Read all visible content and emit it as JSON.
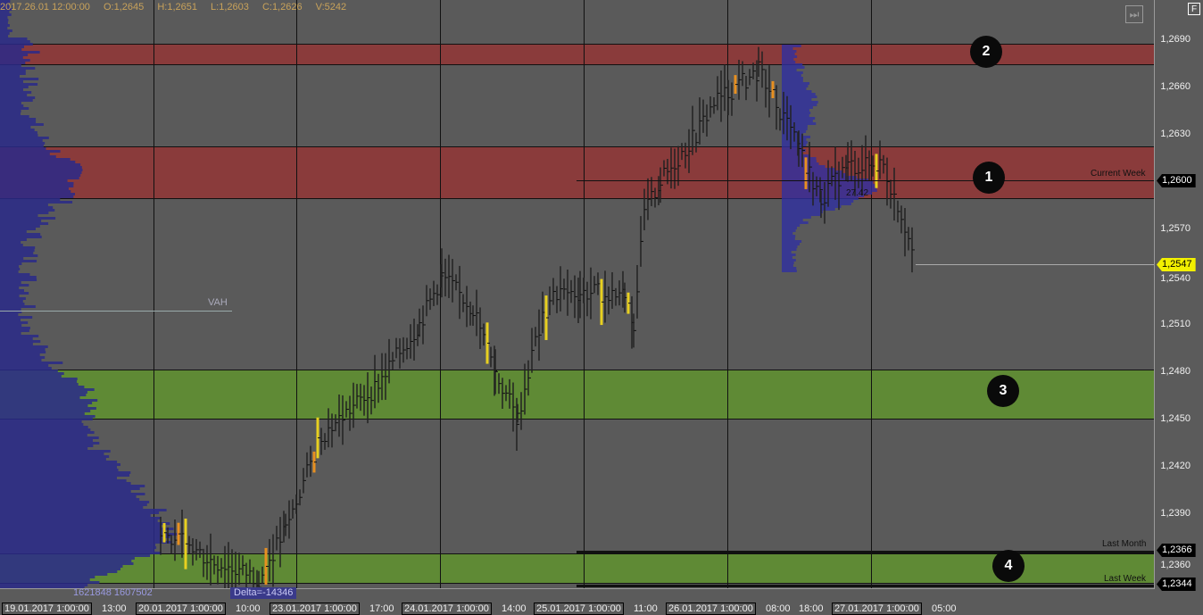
{
  "header": {
    "date": "2017.26.01 12:00:00",
    "open": "O:1,2645",
    "high": "H:1,2651",
    "low": "L:1,2603",
    "close": "C:1,2626",
    "volume": "V:5242"
  },
  "price_axis": [
    "1,2690",
    "1,2660",
    "1,2630",
    "1,2570",
    "1,2540",
    "1,2510",
    "1,2480",
    "1,2450",
    "1,2420",
    "1,2390",
    "1,2360"
  ],
  "price_tags": {
    "current_week": "1,2600",
    "last_price": "1,2547",
    "last_month": "1,2366",
    "last_week": "1,2344"
  },
  "level_labels": {
    "current_week": "Current Week",
    "last_month": "Last Month",
    "last_week": "Last Week",
    "vah": "VAH",
    "poc_value": "27.42"
  },
  "markers": [
    "1",
    "2",
    "3",
    "4"
  ],
  "profile": {
    "volume_text": "1621848 1607502",
    "delta_text": "Delta=-14346"
  },
  "time_axis": {
    "times": [
      "13:00",
      "10:00",
      "17:00",
      "14:00",
      "11:00",
      "08:00",
      "18:00",
      "05:00"
    ],
    "dates": [
      "19.01.2017 1:00:00",
      "20.01.2017 1:00:00",
      "23.01.2017 1:00:00",
      "24.01.2017 1:00:00",
      "25.01.2017 1:00:00",
      "26.01.2017 1:00:00",
      "27.01.2017 1:00:00"
    ]
  },
  "buttons": {
    "scroll_end": "⏭",
    "f_button": "F"
  },
  "colors": {
    "resistance": "#8a3b3b",
    "support": "#5f8a35",
    "profile": "#2a2a8a",
    "last_price": "#f2f000"
  }
}
